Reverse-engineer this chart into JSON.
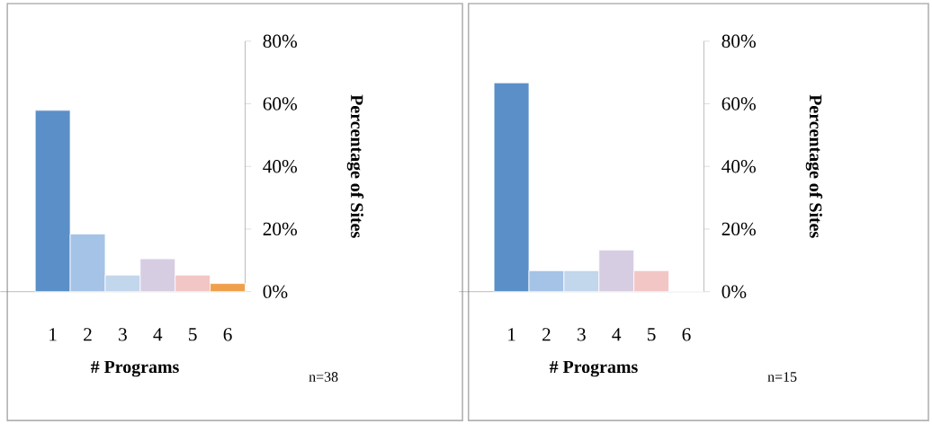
{
  "chart_data": [
    {
      "type": "bar",
      "categories": [
        "1",
        "2",
        "3",
        "4",
        "5",
        "6"
      ],
      "values": [
        57.9,
        18.4,
        5.3,
        10.5,
        5.3,
        2.6
      ],
      "colors": [
        "#5a8fc7",
        "#a5c3e6",
        "#c2d6ec",
        "#d6cde3",
        "#f2c6c4",
        "#f0a04b"
      ],
      "ylim": [
        0,
        80
      ],
      "yticks": [
        {
          "value": 0,
          "label": "0%"
        },
        {
          "value": 20,
          "label": "20%"
        },
        {
          "value": 40,
          "label": "40%"
        },
        {
          "value": 60,
          "label": "60%"
        },
        {
          "value": 80,
          "label": "80%"
        }
      ],
      "xlabel": "# Programs",
      "ylabel": "Percentage  of  Sites",
      "annotations": [
        "n=38"
      ]
    },
    {
      "type": "bar",
      "categories": [
        "1",
        "2",
        "3",
        "4",
        "5",
        "6"
      ],
      "values": [
        66.7,
        6.7,
        6.7,
        13.3,
        6.7,
        0
      ],
      "colors": [
        "#5a8fc7",
        "#a5c3e6",
        "#c2d6ec",
        "#d6cde3",
        "#f2c6c4",
        "#f0a04b"
      ],
      "ylim": [
        0,
        80
      ],
      "yticks": [
        {
          "value": 0,
          "label": "0%"
        },
        {
          "value": 20,
          "label": "20%"
        },
        {
          "value": 40,
          "label": "40%"
        },
        {
          "value": 60,
          "label": "60%"
        },
        {
          "value": 80,
          "label": "80%"
        }
      ],
      "xlabel": "# Programs",
      "ylabel": "Percentage  of  Sites",
      "annotations": [
        "n=15"
      ]
    }
  ]
}
